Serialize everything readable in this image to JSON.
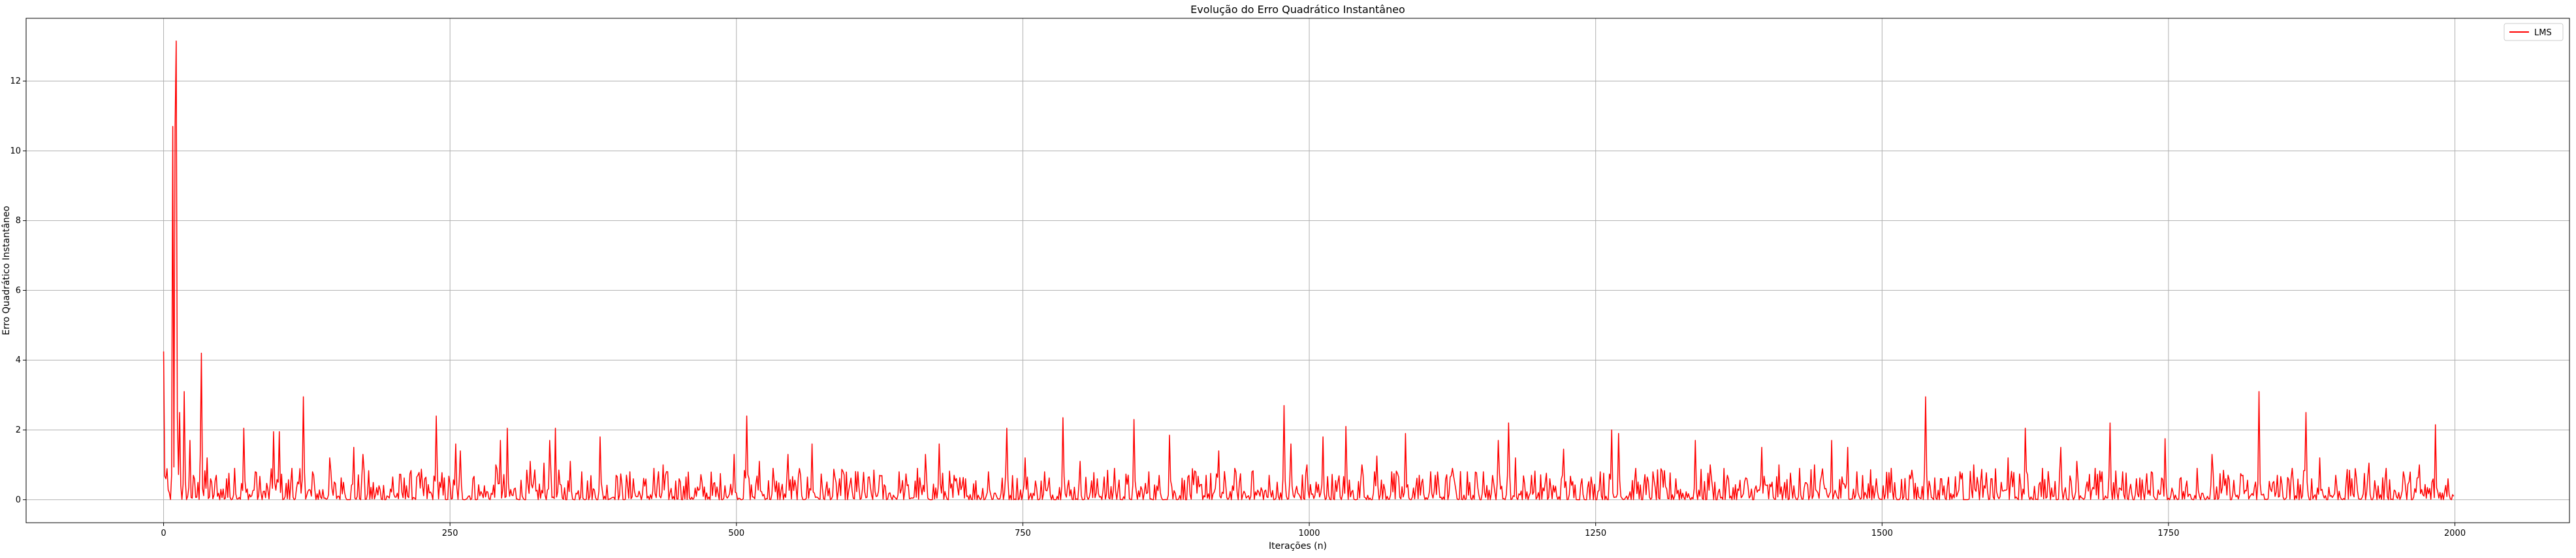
{
  "chart_data": {
    "type": "line",
    "title": "Evolução do Erro Quadrático Instantâneo",
    "xlabel": "Iterações (n)",
    "ylabel": "Erro Quadrático Instantâneo",
    "xlim": [
      -120,
      2100
    ],
    "ylim": [
      -0.66,
      13.8
    ],
    "xticks": [
      0,
      250,
      500,
      750,
      1000,
      1250,
      1500,
      1750,
      2000
    ],
    "yticks": [
      0,
      2,
      4,
      6,
      8,
      10,
      12
    ],
    "grid": true,
    "legend_position": "top-right",
    "series": [
      {
        "name": "LMS",
        "color": "#ff0000",
        "n": 2000,
        "peaks": [
          [
            0,
            4.25
          ],
          [
            2,
            0.6
          ],
          [
            5,
            0.2
          ],
          [
            8,
            10.7
          ],
          [
            10,
            10.6
          ],
          [
            11,
            13.15
          ],
          [
            14,
            2.5
          ],
          [
            18,
            3.1
          ],
          [
            23,
            1.7
          ],
          [
            33,
            4.2
          ],
          [
            38,
            1.2
          ],
          [
            46,
            0.7
          ],
          [
            55,
            0.6
          ],
          [
            62,
            0.9
          ],
          [
            70,
            2.05
          ],
          [
            80,
            0.8
          ],
          [
            96,
            1.95
          ],
          [
            101,
            1.95
          ],
          [
            112,
            0.9
          ],
          [
            122,
            2.95
          ],
          [
            130,
            0.8
          ],
          [
            145,
            1.2
          ],
          [
            157,
            0.5
          ],
          [
            166,
            1.5
          ],
          [
            174,
            1.3
          ],
          [
            188,
            0.4
          ],
          [
            200,
            0.65
          ],
          [
            212,
            0.4
          ],
          [
            222,
            0.7
          ],
          [
            228,
            0.6
          ],
          [
            238,
            2.4
          ],
          [
            255,
            1.6
          ],
          [
            259,
            1.4
          ],
          [
            270,
            0.6
          ],
          [
            280,
            0.4
          ],
          [
            290,
            1.0
          ],
          [
            294,
            1.7
          ],
          [
            300,
            2.05
          ],
          [
            320,
            1.1
          ],
          [
            332,
            1.05
          ],
          [
            337,
            1.7
          ],
          [
            342,
            2.05
          ],
          [
            355,
            1.1
          ],
          [
            365,
            0.8
          ],
          [
            381,
            1.8
          ],
          [
            395,
            0.7
          ],
          [
            410,
            0.6
          ],
          [
            428,
            0.9
          ],
          [
            436,
            1.0
          ],
          [
            450,
            0.6
          ],
          [
            470,
            0.5
          ],
          [
            490,
            0.4
          ],
          [
            498,
            1.3
          ],
          [
            509,
            2.4
          ],
          [
            520,
            1.1
          ],
          [
            532,
            0.9
          ],
          [
            545,
            1.3
          ],
          [
            556,
            0.7
          ],
          [
            566,
            1.6
          ],
          [
            590,
            0.6
          ],
          [
            606,
            0.8
          ],
          [
            625,
            0.7
          ],
          [
            642,
            0.8
          ],
          [
            658,
            0.9
          ],
          [
            665,
            1.3
          ],
          [
            677,
            1.6
          ],
          [
            690,
            0.7
          ],
          [
            700,
            0.6
          ],
          [
            720,
            0.8
          ],
          [
            736,
            2.05
          ],
          [
            752,
            1.2
          ],
          [
            769,
            0.8
          ],
          [
            785,
            2.35
          ],
          [
            800,
            1.1
          ],
          [
            815,
            0.6
          ],
          [
            830,
            0.9
          ],
          [
            847,
            2.3
          ],
          [
            860,
            0.8
          ],
          [
            878,
            1.85
          ],
          [
            895,
            0.7
          ],
          [
            910,
            0.7
          ],
          [
            921,
            1.4
          ],
          [
            935,
            0.9
          ],
          [
            950,
            0.8
          ],
          [
            965,
            0.7
          ],
          [
            978,
            2.7
          ],
          [
            984,
            1.6
          ],
          [
            998,
            1.0
          ],
          [
            1012,
            1.8
          ],
          [
            1032,
            2.1
          ],
          [
            1046,
            1.0
          ],
          [
            1059,
            1.25
          ],
          [
            1072,
            0.8
          ],
          [
            1084,
            1.9
          ],
          [
            1096,
            0.7
          ],
          [
            1110,
            0.7
          ],
          [
            1125,
            0.9
          ],
          [
            1138,
            0.8
          ],
          [
            1152,
            0.8
          ],
          [
            1165,
            1.7
          ],
          [
            1174,
            2.2
          ],
          [
            1180,
            1.2
          ],
          [
            1194,
            0.7
          ],
          [
            1210,
            0.6
          ],
          [
            1222,
            1.45
          ],
          [
            1238,
            0.6
          ],
          [
            1254,
            0.8
          ],
          [
            1264,
            2.0
          ],
          [
            1270,
            1.9
          ],
          [
            1285,
            0.9
          ],
          [
            1300,
            0.8
          ],
          [
            1320,
            0.6
          ],
          [
            1337,
            1.7
          ],
          [
            1350,
            1.0
          ],
          [
            1365,
            0.7
          ],
          [
            1382,
            0.6
          ],
          [
            1395,
            1.5
          ],
          [
            1410,
            1.0
          ],
          [
            1428,
            0.9
          ],
          [
            1441,
            1.0
          ],
          [
            1456,
            1.7
          ],
          [
            1470,
            1.5
          ],
          [
            1478,
            0.8
          ],
          [
            1495,
            0.6
          ],
          [
            1508,
            0.9
          ],
          [
            1525,
            0.6
          ],
          [
            1538,
            2.95
          ],
          [
            1552,
            0.6
          ],
          [
            1568,
            0.8
          ],
          [
            1580,
            1.0
          ],
          [
            1595,
            0.6
          ],
          [
            1610,
            1.2
          ],
          [
            1625,
            2.05
          ],
          [
            1640,
            0.9
          ],
          [
            1656,
            1.5
          ],
          [
            1670,
            1.1
          ],
          [
            1686,
            0.9
          ],
          [
            1699,
            2.2
          ],
          [
            1710,
            0.8
          ],
          [
            1722,
            0.6
          ],
          [
            1735,
            0.8
          ],
          [
            1747,
            1.75
          ],
          [
            1760,
            0.6
          ],
          [
            1775,
            0.9
          ],
          [
            1788,
            1.3
          ],
          [
            1800,
            0.6
          ],
          [
            1815,
            0.7
          ],
          [
            1829,
            3.1
          ],
          [
            1845,
            0.7
          ],
          [
            1858,
            0.9
          ],
          [
            1870,
            2.5
          ],
          [
            1882,
            1.2
          ],
          [
            1896,
            0.7
          ],
          [
            1910,
            0.6
          ],
          [
            1925,
            1.05
          ],
          [
            1940,
            0.9
          ],
          [
            1955,
            0.8
          ],
          [
            1969,
            1.0
          ],
          [
            1983,
            2.15
          ],
          [
            1994,
            0.6
          ],
          [
            1999,
            0.1
          ]
        ]
      }
    ]
  }
}
